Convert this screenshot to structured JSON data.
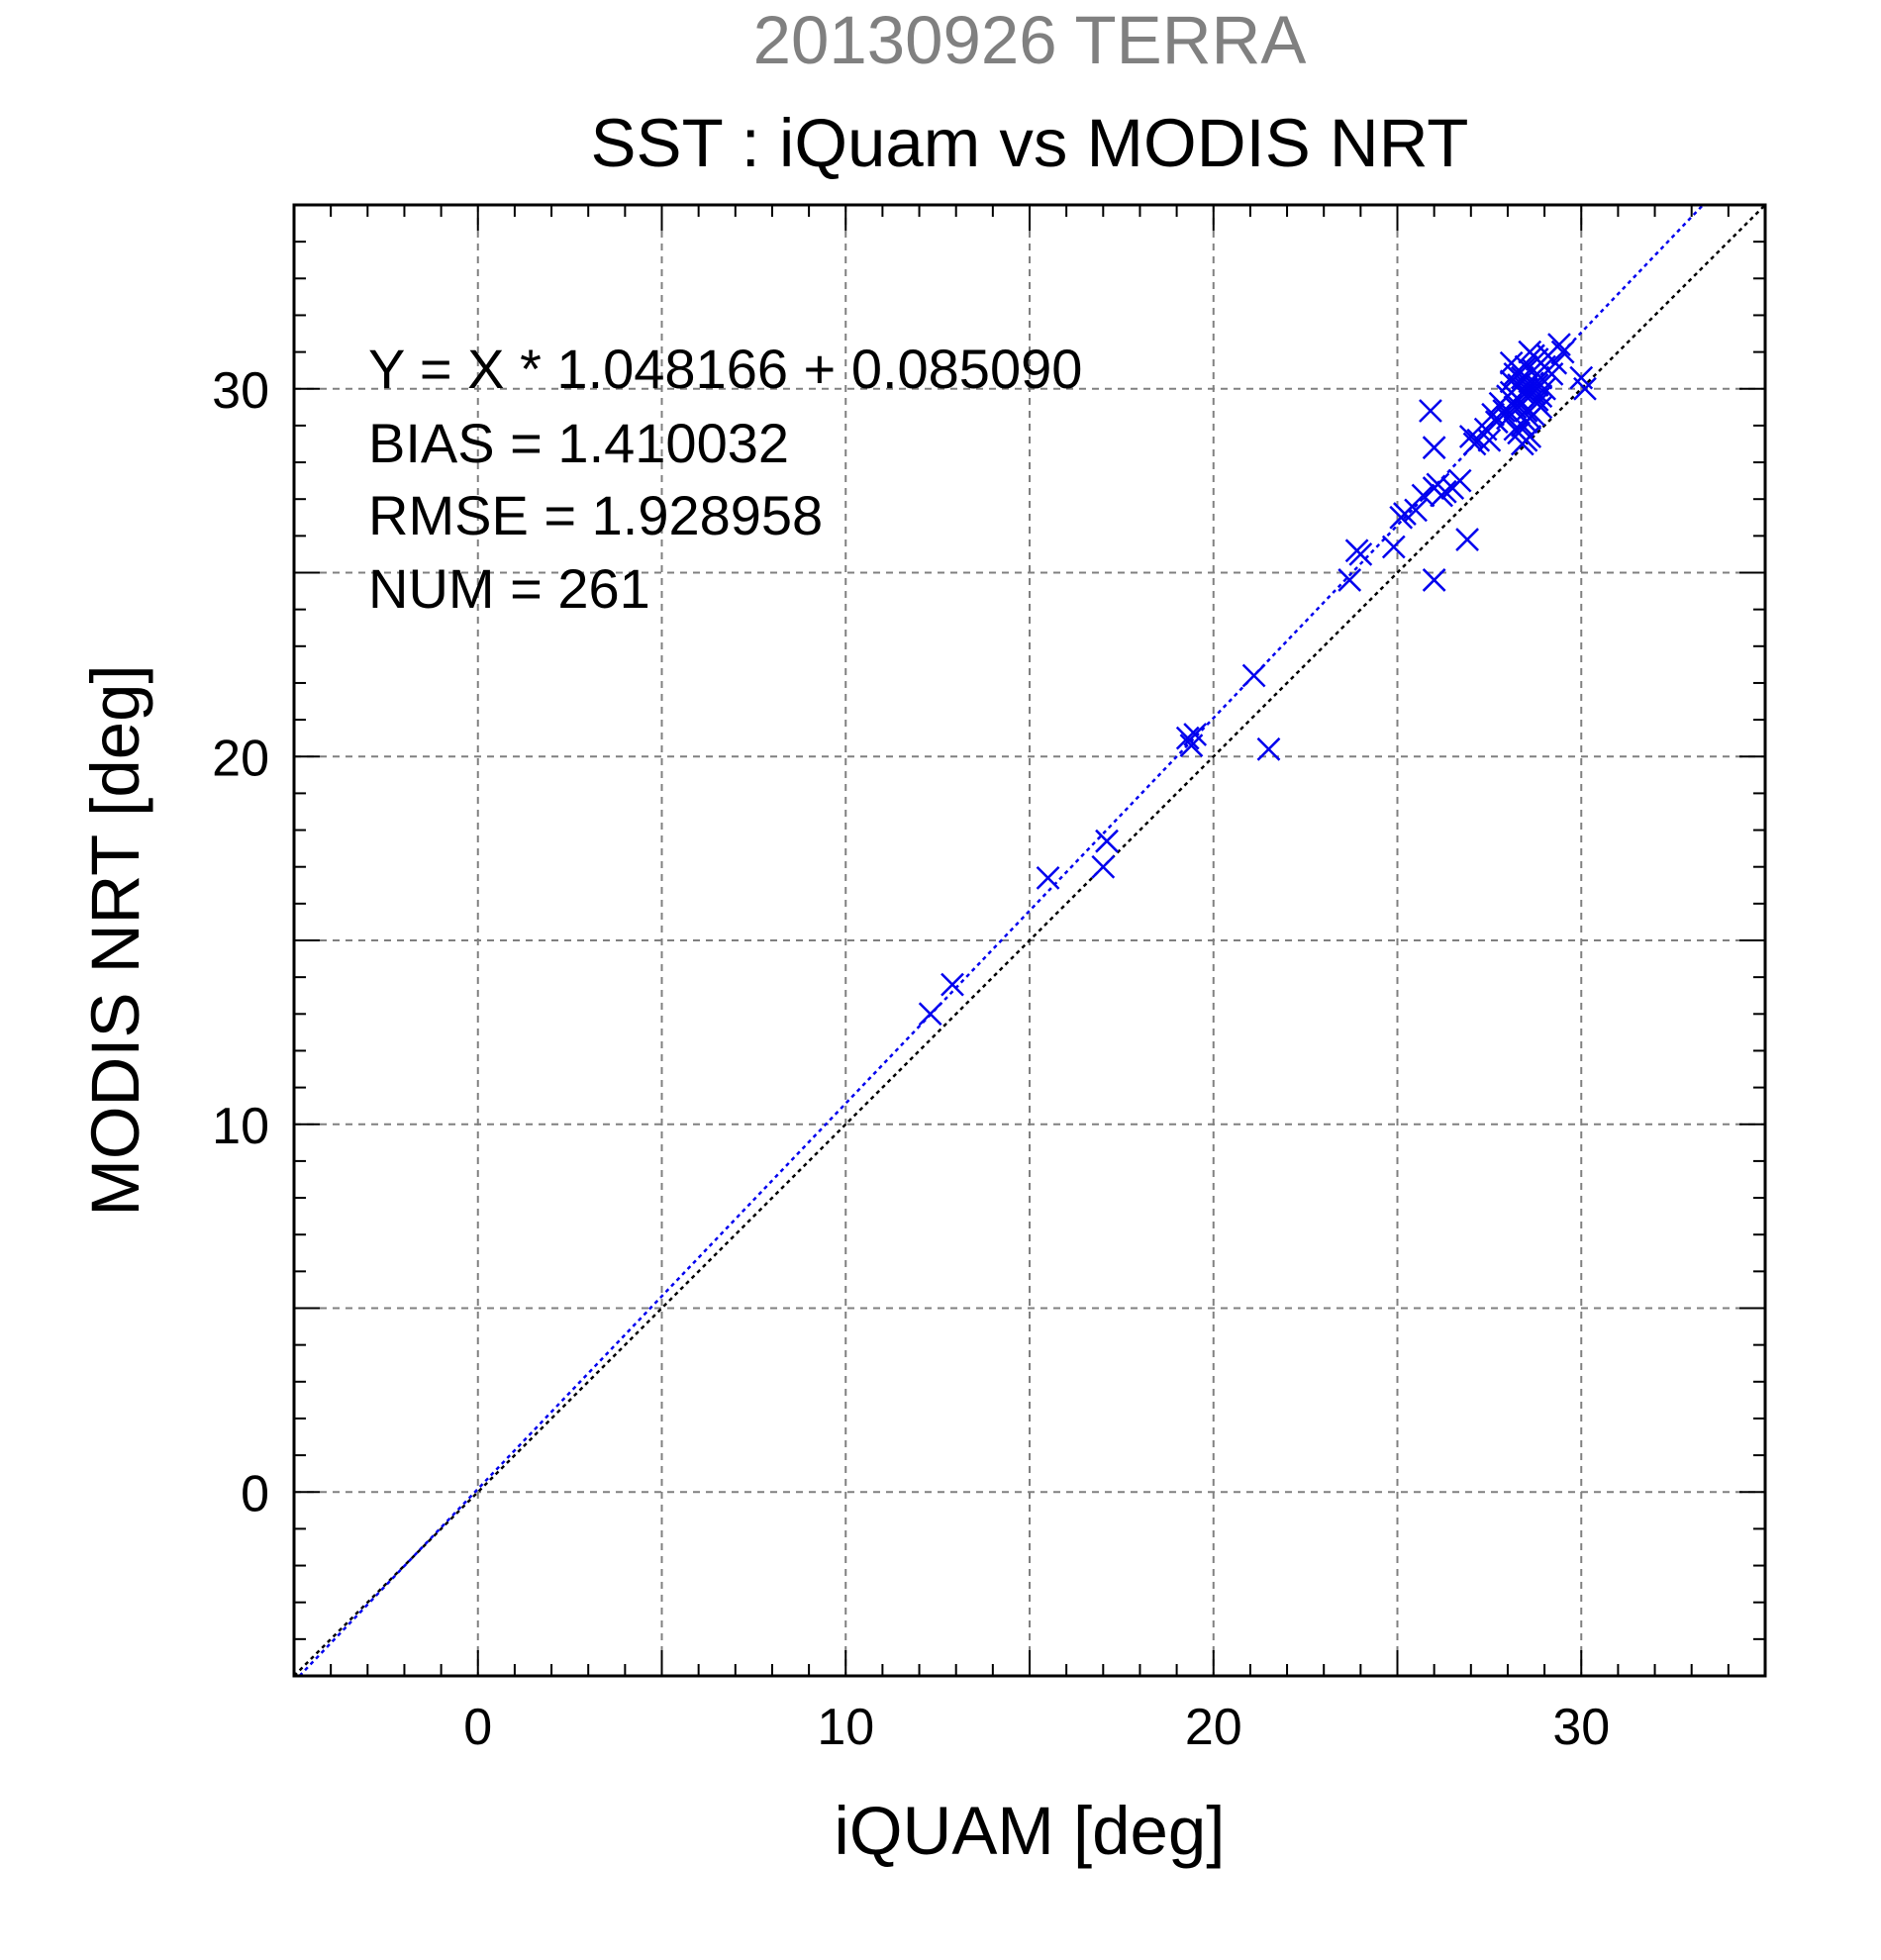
{
  "chart_data": {
    "type": "scatter",
    "supertitle": "20130926 TERRA",
    "title": "SST : iQuam vs MODIS NRT",
    "xlabel": "iQUAM [deg]",
    "ylabel": "MODIS NRT [deg]",
    "xlim": [
      -5,
      35
    ],
    "ylim": [
      -5,
      35
    ],
    "xticks": [
      0,
      10,
      20,
      30
    ],
    "yticks": [
      0,
      10,
      20,
      30
    ],
    "xtick_labels": [
      "0",
      "10",
      "20",
      "30"
    ],
    "ytick_labels": [
      "0",
      "10",
      "20",
      "30"
    ],
    "grid": true,
    "stats": {
      "regression": "Y = X * 1.048166 + 0.085090",
      "bias": "BIAS = 1.410032",
      "rmse": "RMSE = 1.928958",
      "num": "NUM = 261"
    },
    "fit": {
      "slope": 1.048166,
      "intercept": 0.08509
    },
    "colors": {
      "points": "#0000ee",
      "fit_line": "#0000ee",
      "identity_line": "#000000",
      "grid": "#808080",
      "supertitle": "#808080"
    },
    "series": [
      {
        "marker": "x",
        "x": [
          12.3,
          12.9,
          15.5,
          17.0,
          17.1,
          19.3,
          19.4,
          19.5,
          21.1,
          21.5,
          23.7,
          23.9,
          24.0,
          24.9,
          25.1,
          25.2,
          25.5,
          25.7,
          25.9,
          26.0,
          26.0,
          26.0,
          26.1,
          26.2,
          26.3,
          26.5,
          26.7,
          26.9,
          27.0,
          27.1,
          27.2,
          27.4,
          27.5,
          27.6,
          27.7,
          27.8,
          27.9,
          28.0,
          28.0,
          28.1,
          28.1,
          28.2,
          28.2,
          28.3,
          28.3,
          28.3,
          28.4,
          28.4,
          28.4,
          28.5,
          28.5,
          28.5,
          28.5,
          28.6,
          28.6,
          28.6,
          28.7,
          28.7,
          28.7,
          28.8,
          28.8,
          28.8,
          28.9,
          28.9,
          29.0,
          29.0,
          29.1,
          29.2,
          29.3,
          29.4,
          29.5,
          30.0,
          30.1,
          28.4,
          28.6,
          28.2,
          28.5,
          28.9,
          28.3,
          28.7,
          28.1,
          28.6,
          28.4,
          28.8
        ],
        "y": [
          13.0,
          13.8,
          16.7,
          17.0,
          17.7,
          20.5,
          20.3,
          20.6,
          22.2,
          20.2,
          24.8,
          25.6,
          25.5,
          25.7,
          26.5,
          26.6,
          26.7,
          27.1,
          29.4,
          28.4,
          24.8,
          27.3,
          27.4,
          27.1,
          27.2,
          27.3,
          27.5,
          25.9,
          28.7,
          28.5,
          28.6,
          28.9,
          28.6,
          29.3,
          29.1,
          29.6,
          29.4,
          29.8,
          29.2,
          29.9,
          30.2,
          29.5,
          30.4,
          29.7,
          30.1,
          28.8,
          30.3,
          29.6,
          28.5,
          30.0,
          29.4,
          30.6,
          29.1,
          30.2,
          29.8,
          28.7,
          30.5,
          29.9,
          29.3,
          30.1,
          29.6,
          30.8,
          30.3,
          29.8,
          30.6,
          30.0,
          30.9,
          30.4,
          30.7,
          31.2,
          31.0,
          30.3,
          30.0,
          29.0,
          29.2,
          28.9,
          28.6,
          29.5,
          30.5,
          30.9,
          30.7,
          31.0,
          29.9,
          29.7
        ]
      }
    ]
  }
}
